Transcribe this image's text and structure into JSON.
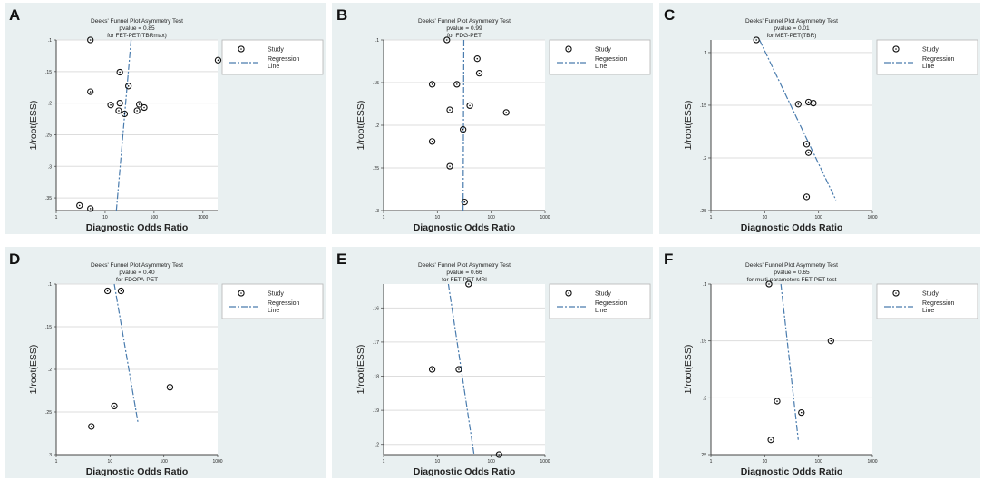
{
  "figure": {
    "colors": {
      "panel_bg": "#e9f0f1",
      "plot_bg": "#ffffff",
      "line": "#4a7cae",
      "point": "#111111",
      "grid": "#dddddd"
    },
    "shared_labels": {
      "xlabel": "Diagnostic Odds Ratio",
      "ylabel": "1/root(ESS)",
      "legend_study": "Study",
      "legend_line_1": "Regression",
      "legend_line_2": "Line"
    }
  },
  "chart_data": [
    {
      "panel": "A",
      "type": "scatter",
      "title": "Deeks' Funnel Plot Asymmetry Test",
      "pvalue_text": "pvalue = 0.85",
      "subtitle": "for FET-PET(TBRmax)",
      "xlabel": "Diagnostic Odds Ratio",
      "ylabel": "1/root(ESS)",
      "xscale": "log",
      "xlim": [
        1,
        2000
      ],
      "xticks": [
        1,
        10,
        100,
        1000
      ],
      "xtick_labels": [
        "1",
        "10",
        "100",
        "1000"
      ],
      "ylim": [
        0.1,
        0.37
      ],
      "yticks": [
        0.1,
        0.15,
        0.2,
        0.25,
        0.3,
        0.35
      ],
      "ytick_labels": [
        ".1",
        ".15",
        ".2",
        ".25",
        ".3",
        ".35"
      ],
      "y_reversed": true,
      "legend_position": "top-right",
      "points": [
        [
          5,
          0.1
        ],
        [
          2040,
          0.132
        ],
        [
          20,
          0.151
        ],
        [
          5,
          0.182
        ],
        [
          30,
          0.173
        ],
        [
          13,
          0.203
        ],
        [
          20,
          0.2
        ],
        [
          19,
          0.212
        ],
        [
          25,
          0.217
        ],
        [
          50,
          0.202
        ],
        [
          45,
          0.212
        ],
        [
          63,
          0.207
        ],
        [
          3,
          0.362
        ],
        [
          5,
          0.367
        ]
      ],
      "regression": [
        [
          34,
          0.1
        ],
        [
          17,
          0.37
        ]
      ]
    },
    {
      "panel": "B",
      "type": "scatter",
      "title": "Deeks' Funnel Plot Asymmetry Test",
      "pvalue_text": "pvalue = 0.99",
      "subtitle": "for FDG-PET",
      "xlabel": "Diagnostic Odds Ratio",
      "ylabel": "1/root(ESS)",
      "xscale": "log",
      "xlim": [
        1,
        1000
      ],
      "xticks": [
        1,
        10,
        100,
        1000
      ],
      "xtick_labels": [
        "1",
        "10",
        "100",
        "1000"
      ],
      "ylim": [
        0.1,
        0.3
      ],
      "yticks": [
        0.1,
        0.15,
        0.2,
        0.25,
        0.3
      ],
      "ytick_labels": [
        ".1",
        ".15",
        ".2",
        ".25",
        ".3"
      ],
      "y_reversed": true,
      "legend_position": "top-right",
      "points": [
        [
          15,
          0.1
        ],
        [
          55,
          0.122
        ],
        [
          60,
          0.139
        ],
        [
          8,
          0.152
        ],
        [
          23,
          0.152
        ],
        [
          40,
          0.177
        ],
        [
          17,
          0.182
        ],
        [
          190,
          0.185
        ],
        [
          30,
          0.205
        ],
        [
          8,
          0.219
        ],
        [
          17,
          0.248
        ],
        [
          32,
          0.29
        ]
      ],
      "regression": [
        [
          31,
          0.1
        ],
        [
          30,
          0.3
        ]
      ]
    },
    {
      "panel": "C",
      "type": "scatter",
      "title": "Deeks' Funnel Plot Asymmetry Test",
      "pvalue_text": "pvalue = 0.01",
      "subtitle": "for MET-PET(TBR)",
      "xlabel": "Diagnostic Odds Ratio",
      "ylabel": "1/root(ESS)",
      "xscale": "log",
      "xlim": [
        1,
        1000
      ],
      "xticks": [
        1,
        10,
        100,
        1000
      ],
      "xtick_labels": [
        "1",
        "10",
        "100",
        "1000"
      ],
      "ylim": [
        0.088,
        0.25
      ],
      "yticks": [
        0.1,
        0.15,
        0.2,
        0.25
      ],
      "ytick_labels": [
        ".1",
        ".15",
        ".2",
        ".25"
      ],
      "y_reversed": true,
      "legend_position": "top-right",
      "points": [
        [
          7,
          0.088
        ],
        [
          42,
          0.149
        ],
        [
          65,
          0.147
        ],
        [
          80,
          0.148
        ],
        [
          60,
          0.187
        ],
        [
          65,
          0.195
        ],
        [
          60,
          0.237
        ]
      ],
      "regression": [
        [
          8,
          0.088
        ],
        [
          210,
          0.24
        ]
      ]
    },
    {
      "panel": "D",
      "type": "scatter",
      "title": "Deeks' Funnel Plot Asymmetry Test",
      "pvalue_text": "pvalue = 0.40",
      "subtitle": "for FDOPA-PET",
      "xlabel": "Diagnostic Odds Ratio",
      "ylabel": "1/root(ESS)",
      "xscale": "log",
      "xlim": [
        1,
        1000
      ],
      "xticks": [
        1,
        10,
        100,
        1000
      ],
      "xtick_labels": [
        "1",
        "10",
        "100",
        "1000"
      ],
      "ylim": [
        0.1,
        0.3
      ],
      "yticks": [
        0.1,
        0.15,
        0.2,
        0.25,
        0.3
      ],
      "ytick_labels": [
        ".1",
        ".15",
        ".2",
        ".25",
        ".3"
      ],
      "y_reversed": true,
      "legend_position": "top-right",
      "points": [
        [
          9,
          0.108
        ],
        [
          16,
          0.108
        ],
        [
          130,
          0.221
        ],
        [
          12,
          0.243
        ],
        [
          4.5,
          0.267
        ]
      ],
      "regression": [
        [
          12,
          0.1
        ],
        [
          33,
          0.262
        ]
      ]
    },
    {
      "panel": "E",
      "type": "scatter",
      "title": "Deeks' Funnel Plot Asymmetry Test",
      "pvalue_text": "pvalue = 0.66",
      "subtitle": "for FET-PET-MRI",
      "xlabel": "Diagnostic Odds Ratio",
      "ylabel": "1/root(ESS)",
      "xscale": "log",
      "xlim": [
        1,
        1000
      ],
      "xticks": [
        1,
        10,
        100,
        1000
      ],
      "xtick_labels": [
        "1",
        "10",
        "100",
        "1000"
      ],
      "ylim": [
        0.153,
        0.203
      ],
      "yticks": [
        0.16,
        0.17,
        0.18,
        0.19,
        0.2
      ],
      "ytick_labels": [
        ".16",
        ".17",
        ".18",
        ".19",
        ".2"
      ],
      "y_reversed": true,
      "legend_position": "top-right",
      "points": [
        [
          38,
          0.153
        ],
        [
          8,
          0.178
        ],
        [
          25,
          0.178
        ],
        [
          140,
          0.203
        ]
      ],
      "regression": [
        [
          16,
          0.153
        ],
        [
          48,
          0.203
        ]
      ]
    },
    {
      "panel": "F",
      "type": "scatter",
      "title": "Deeks' Funnel Plot Asymmetry Test",
      "pvalue_text": "pvalue = 0.65",
      "subtitle": "for multi-parameters FET-PET test",
      "xlabel": "Diagnostic Odds Ratio",
      "ylabel": "1/root(ESS)",
      "xscale": "log",
      "xlim": [
        1,
        1000
      ],
      "xticks": [
        1,
        10,
        100,
        1000
      ],
      "xtick_labels": [
        "1",
        "10",
        "100",
        "1000"
      ],
      "ylim": [
        0.1,
        0.25
      ],
      "yticks": [
        0.1,
        0.15,
        0.2,
        0.25
      ],
      "ytick_labels": [
        ".1",
        ".15",
        ".2",
        ".25"
      ],
      "y_reversed": true,
      "legend_position": "top-right",
      "points": [
        [
          12,
          0.1
        ],
        [
          170,
          0.15
        ],
        [
          17,
          0.203
        ],
        [
          48,
          0.213
        ],
        [
          13,
          0.237
        ]
      ],
      "regression": [
        [
          20,
          0.1
        ],
        [
          42,
          0.237
        ]
      ]
    }
  ]
}
